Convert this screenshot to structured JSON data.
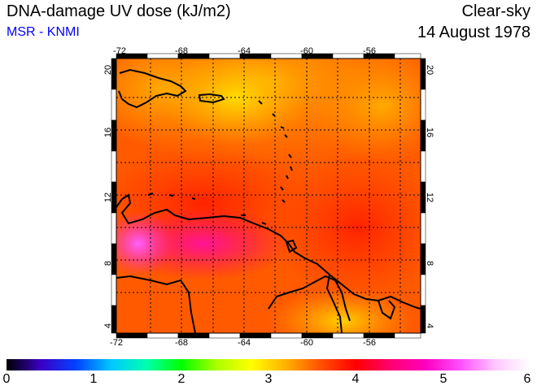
{
  "header": {
    "title": "DNA-damage UV dose (kJ/m2)",
    "subtitle": "MSR - KNMI",
    "sky_condition": "Clear-sky",
    "date": "14 August 1978"
  },
  "map": {
    "lon_ticks": [
      "-72",
      "-68",
      "-64",
      "-60",
      "-56"
    ],
    "lat_ticks": [
      "4",
      "8",
      "12",
      "16",
      "20"
    ],
    "subtitle_color": "#0000ff"
  },
  "colorbar": {
    "labels": [
      "0",
      "1",
      "2",
      "3",
      "4",
      "5",
      "6"
    ],
    "colors": [
      "#000000",
      "#3b00c8",
      "#0044ff",
      "#00c8ff",
      "#00ffb0",
      "#00ff00",
      "#aaff00",
      "#ffff00",
      "#ffb000",
      "#ff5000",
      "#ff0000",
      "#ff0070",
      "#ff00c0",
      "#ff50ff",
      "#ffc8ff",
      "#ffffff"
    ]
  }
}
